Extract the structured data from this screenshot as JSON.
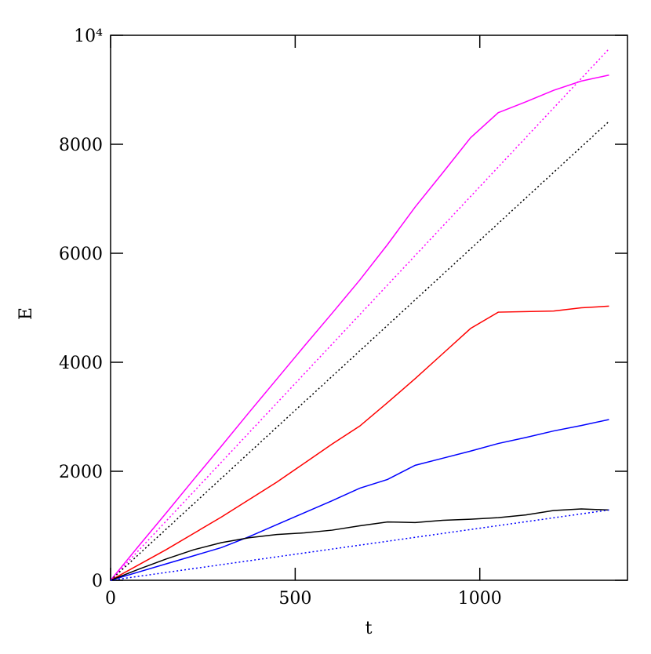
{
  "chart_data": {
    "type": "line",
    "xlabel": "t",
    "ylabel": "E",
    "xlim": [
      0,
      1400
    ],
    "ylim": [
      0,
      10000
    ],
    "xticks": [
      0,
      500,
      1000
    ],
    "yticks": [
      0,
      2000,
      4000,
      6000,
      8000,
      {
        "value": 10000,
        "label": "10⁴"
      }
    ],
    "series": [
      {
        "color": "#ff00ff",
        "style": "solid",
        "x": [
          0,
          75,
          150,
          225,
          300,
          375,
          450,
          525,
          600,
          675,
          750,
          825,
          900,
          975,
          1050,
          1125,
          1200,
          1275,
          1350
        ],
        "values": [
          0,
          620,
          1230,
          1850,
          2460,
          3080,
          3690,
          4300,
          4900,
          5510,
          6160,
          6850,
          7480,
          8120,
          8580,
          8780,
          8990,
          9160,
          9270
        ]
      },
      {
        "color": "#ff0000",
        "style": "solid",
        "x": [
          0,
          75,
          150,
          225,
          300,
          375,
          450,
          525,
          600,
          675,
          750,
          825,
          900,
          975,
          1050,
          1125,
          1200,
          1275,
          1350
        ],
        "values": [
          0,
          280,
          560,
          860,
          1160,
          1480,
          1800,
          2150,
          2500,
          2830,
          3260,
          3700,
          4160,
          4620,
          4920,
          4930,
          4940,
          5000,
          5030
        ]
      },
      {
        "color": "#0000ff",
        "style": "solid",
        "x": [
          0,
          75,
          150,
          225,
          300,
          375,
          450,
          525,
          600,
          675,
          750,
          825,
          900,
          975,
          1050,
          1125,
          1200,
          1275,
          1350
        ],
        "values": [
          0,
          150,
          300,
          450,
          600,
          800,
          1020,
          1240,
          1460,
          1690,
          1850,
          2110,
          2240,
          2370,
          2510,
          2620,
          2740,
          2840,
          2950
        ]
      },
      {
        "color": "#000000",
        "style": "solid",
        "x": [
          0,
          75,
          150,
          225,
          300,
          375,
          450,
          525,
          600,
          675,
          750,
          825,
          900,
          975,
          1050,
          1125,
          1200,
          1275,
          1350
        ],
        "values": [
          0,
          200,
          390,
          560,
          690,
          780,
          840,
          870,
          920,
          1000,
          1070,
          1060,
          1100,
          1120,
          1150,
          1200,
          1280,
          1310,
          1290
        ]
      },
      {
        "color": "#ff00ff",
        "style": "dotted",
        "x": [
          0,
          1350
        ],
        "values": [
          0,
          9750
        ]
      },
      {
        "color": "#000000",
        "style": "dotted",
        "x": [
          0,
          1350
        ],
        "values": [
          0,
          8420
        ]
      },
      {
        "color": "#0000ff",
        "style": "dotted",
        "x": [
          0,
          1350
        ],
        "values": [
          0,
          1290
        ]
      }
    ]
  }
}
